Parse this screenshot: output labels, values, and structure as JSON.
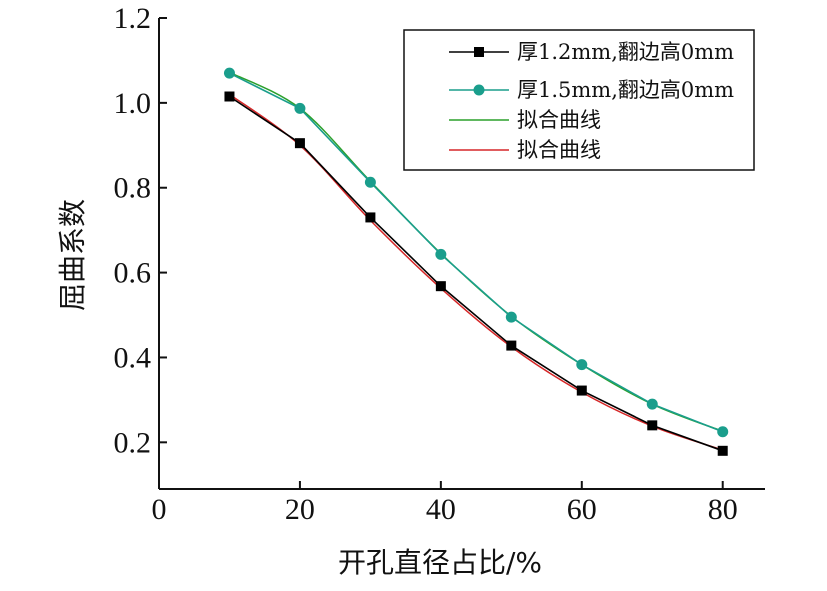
{
  "chart_data": {
    "type": "line",
    "title": "",
    "xlabel": "开孔直径占比/%",
    "ylabel": "屈曲系数",
    "xlim": [
      0,
      86
    ],
    "ylim": [
      0.09,
      1.2
    ],
    "x_ticks": [
      0,
      20,
      40,
      60,
      80
    ],
    "x_tick_labels": [
      "0",
      "20",
      "40",
      "60",
      "80"
    ],
    "y_ticks": [
      0.2,
      0.4,
      0.6,
      0.8,
      1.0,
      1.2
    ],
    "y_tick_labels": [
      "0.2",
      "0.4",
      "0.6",
      "0.8",
      "1.0",
      "1.2"
    ],
    "y_tick_label_colors": {
      "0.2": "#7a706a"
    },
    "grid": false,
    "legend_position": "top-right",
    "x": [
      10,
      20,
      30,
      40,
      50,
      60,
      70,
      80
    ],
    "series": [
      {
        "name": "厚1.2mm,翻边高0mm",
        "kind": "data",
        "marker": "square",
        "color": "#000000",
        "values": [
          1.015,
          0.905,
          0.73,
          0.568,
          0.428,
          0.322,
          0.24,
          0.18
        ]
      },
      {
        "name": "厚1.5mm,翻边高0mm",
        "kind": "data",
        "marker": "circle",
        "color": "#1a9e8c",
        "values": [
          1.07,
          0.987,
          0.813,
          0.643,
          0.495,
          0.383,
          0.29,
          0.225
        ]
      },
      {
        "name": "拟合曲线",
        "kind": "fit",
        "marker": "none",
        "color": "#2ca02c",
        "fit_of": "厚1.5mm,翻边高0mm",
        "values": [
          1.072,
          0.987,
          0.815,
          0.645,
          0.497,
          0.383,
          0.29,
          0.226
        ]
      },
      {
        "name": "拟合曲线",
        "kind": "fit",
        "marker": "none",
        "color": "#d62728",
        "fit_of": "厚1.2mm,翻边高0mm",
        "values": [
          1.02,
          0.9,
          0.723,
          0.563,
          0.425,
          0.318,
          0.238,
          0.182
        ]
      }
    ]
  }
}
